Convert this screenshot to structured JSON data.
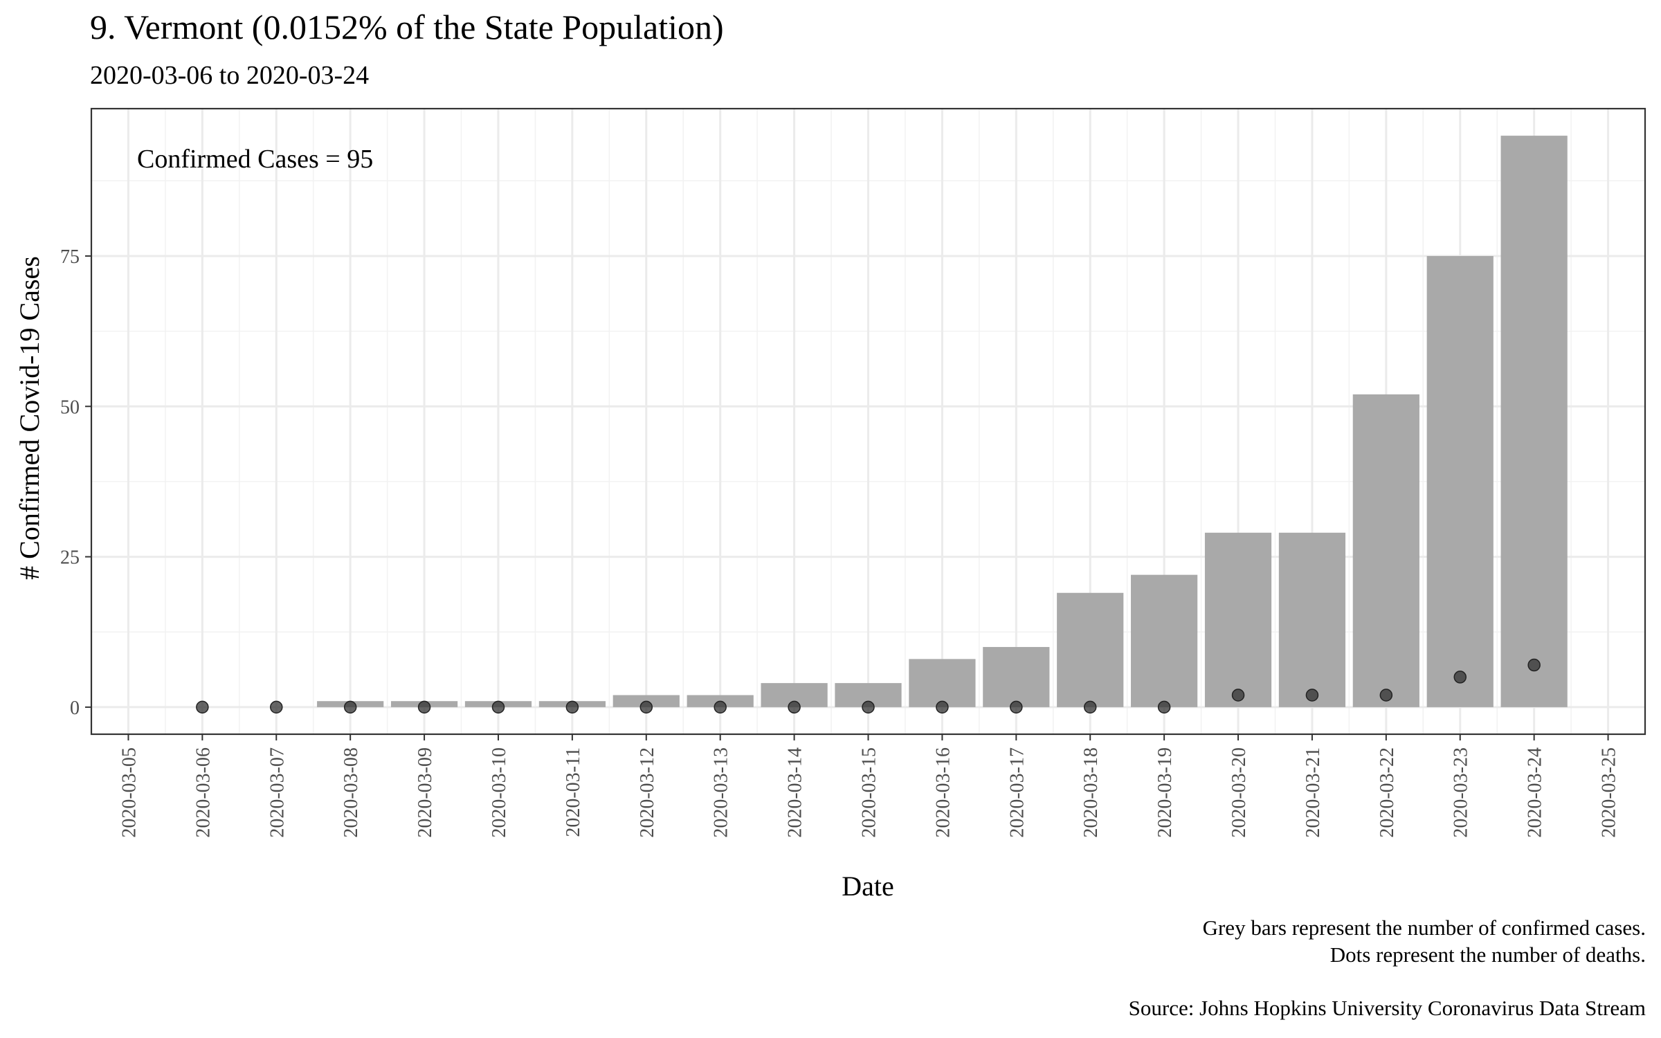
{
  "chart_data": {
    "type": "bar",
    "title": "9. Vermont (0.0152% of the State Population)",
    "subtitle": "2020-03-06 to 2020-03-24",
    "annotation": "Confirmed Cases = 95",
    "xlabel": "Date",
    "ylabel": "# Confirmed Covid-19 Cases",
    "ylim": [
      -4.5,
      99.5
    ],
    "y_ticks": [
      0,
      25,
      50,
      75
    ],
    "x_ticks": [
      "2020-03-05",
      "2020-03-06",
      "2020-03-07",
      "2020-03-08",
      "2020-03-09",
      "2020-03-10",
      "2020-03-11",
      "2020-03-12",
      "2020-03-13",
      "2020-03-14",
      "2020-03-15",
      "2020-03-16",
      "2020-03-17",
      "2020-03-18",
      "2020-03-19",
      "2020-03-20",
      "2020-03-21",
      "2020-03-22",
      "2020-03-23",
      "2020-03-24",
      "2020-03-25"
    ],
    "categories": [
      "2020-03-06",
      "2020-03-07",
      "2020-03-08",
      "2020-03-09",
      "2020-03-10",
      "2020-03-11",
      "2020-03-12",
      "2020-03-13",
      "2020-03-14",
      "2020-03-15",
      "2020-03-16",
      "2020-03-17",
      "2020-03-18",
      "2020-03-19",
      "2020-03-20",
      "2020-03-21",
      "2020-03-22",
      "2020-03-23",
      "2020-03-24"
    ],
    "series": [
      {
        "name": "Confirmed cases",
        "mark": "bar",
        "color": "#a9a9a9",
        "values": [
          0,
          0,
          1,
          1,
          1,
          1,
          2,
          2,
          4,
          4,
          8,
          10,
          19,
          22,
          29,
          29,
          52,
          75,
          95
        ]
      },
      {
        "name": "Deaths",
        "mark": "point",
        "color": "#555555",
        "values": [
          0,
          0,
          0,
          0,
          0,
          0,
          0,
          0,
          0,
          0,
          0,
          0,
          0,
          0,
          2,
          2,
          2,
          5,
          7
        ]
      }
    ],
    "grid": true,
    "caption_lines": [
      "Grey bars represent the number of confirmed cases.",
      "Dots represent the number of deaths.",
      "",
      "Source: Johns Hopkins University Coronavirus Data Stream"
    ]
  }
}
